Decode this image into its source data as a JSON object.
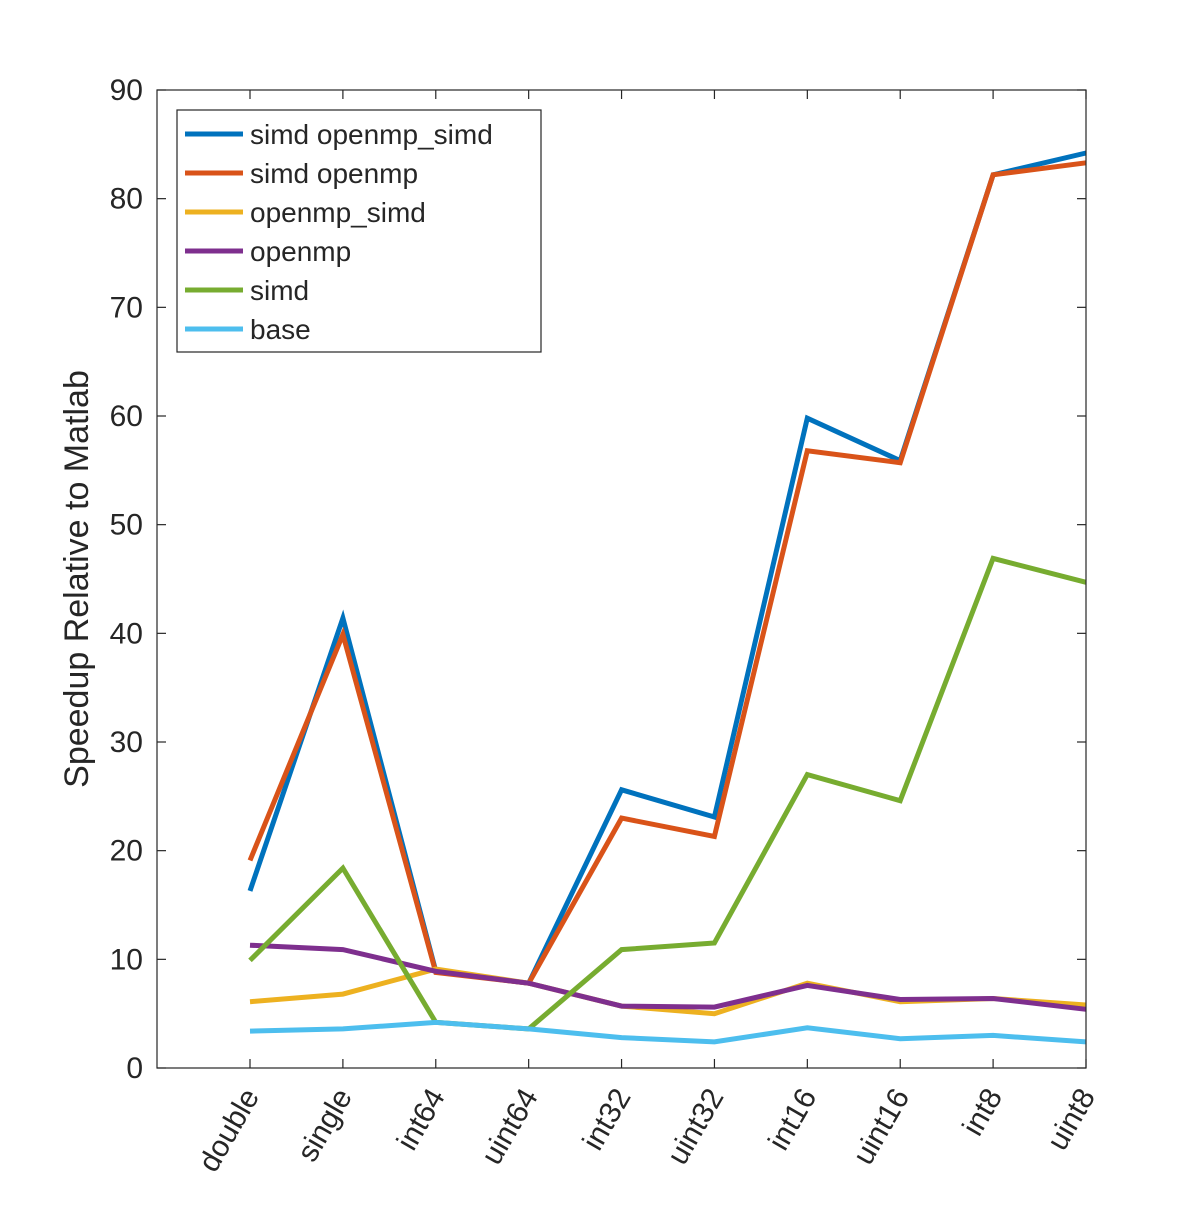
{
  "chart_data": {
    "type": "line",
    "title": "",
    "xlabel": "",
    "ylabel": "Speedup Relative to Matlab",
    "categories": [
      "double",
      "single",
      "int64",
      "uint64",
      "int32",
      "uint32",
      "int16",
      "uint16",
      "int8",
      "uint8"
    ],
    "ylim": [
      0,
      90
    ],
    "yticks": [
      0,
      10,
      20,
      30,
      40,
      50,
      60,
      70,
      80,
      90
    ],
    "grid": false,
    "legend_position": "top-left",
    "series": [
      {
        "name": "simd openmp_simd",
        "color": "#0072BD",
        "values": [
          16.3,
          41.4,
          8.9,
          7.8,
          25.6,
          23.1,
          59.8,
          55.9,
          82.2,
          84.2
        ]
      },
      {
        "name": "simd openmp",
        "color": "#D95319",
        "values": [
          19.1,
          39.9,
          8.8,
          7.8,
          23.0,
          21.3,
          56.8,
          55.7,
          82.2,
          83.3
        ]
      },
      {
        "name": "openmp_simd",
        "color": "#EDB120",
        "values": [
          6.1,
          6.8,
          9.1,
          7.8,
          5.7,
          5.0,
          7.8,
          6.1,
          6.4,
          5.8
        ]
      },
      {
        "name": "openmp",
        "color": "#7E2F8E",
        "values": [
          11.3,
          10.9,
          8.9,
          7.8,
          5.7,
          5.6,
          7.6,
          6.3,
          6.4,
          5.4
        ]
      },
      {
        "name": "simd",
        "color": "#77AC30",
        "values": [
          9.9,
          18.4,
          4.2,
          3.6,
          10.9,
          11.5,
          27.0,
          24.6,
          46.9,
          44.7
        ]
      },
      {
        "name": "base",
        "color": "#4DBEEE",
        "values": [
          3.4,
          3.6,
          4.2,
          3.6,
          2.8,
          2.4,
          3.7,
          2.7,
          3.0,
          2.4
        ]
      }
    ]
  }
}
